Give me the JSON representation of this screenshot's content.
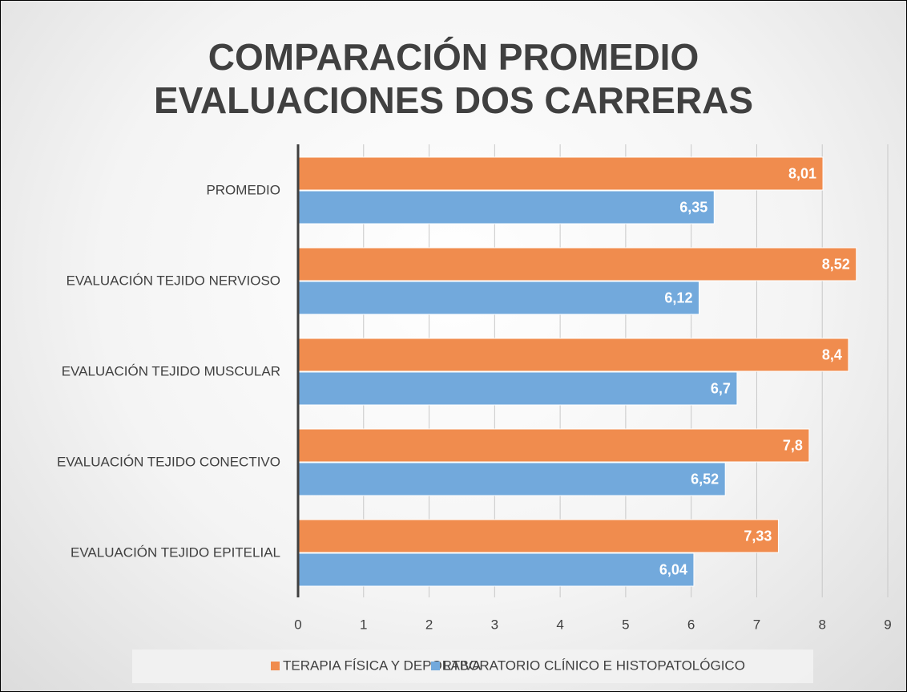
{
  "chart_data": {
    "type": "hbar",
    "title": "COMPARACIÓN PROMEDIO EVALUACIONES DOS CARRERAS",
    "categories": [
      "PROMEDIO",
      "EVALUACIÓN TEJIDO NERVIOSO",
      "EVALUACIÓN TEJIDO MUSCULAR",
      "EVALUACIÓN TEJIDO CONECTIVO",
      "EVALUACIÓN TEJIDO EPITELIAL"
    ],
    "series": [
      {
        "name": "TERAPIA FÍSICA Y DEPORTIVA",
        "color": "#f08c4e",
        "values": [
          8.01,
          8.52,
          8.4,
          7.8,
          7.33
        ],
        "value_labels": [
          "8,01",
          "8,52",
          "8,4",
          "7,8",
          "7,33"
        ]
      },
      {
        "name": "LABORATORIO CLÍNICO E HISTOPATOLÓGICO",
        "color": "#72a9dc",
        "values": [
          6.35,
          6.12,
          6.7,
          6.52,
          6.04
        ],
        "value_labels": [
          "6,35",
          "6,12",
          "6,7",
          "6,52",
          "6,04"
        ]
      }
    ],
    "xlim": [
      0,
      9
    ],
    "xticks": [
      0,
      1,
      2,
      3,
      4,
      5,
      6,
      7,
      8,
      9
    ],
    "grid": true,
    "legend": "bottom"
  }
}
